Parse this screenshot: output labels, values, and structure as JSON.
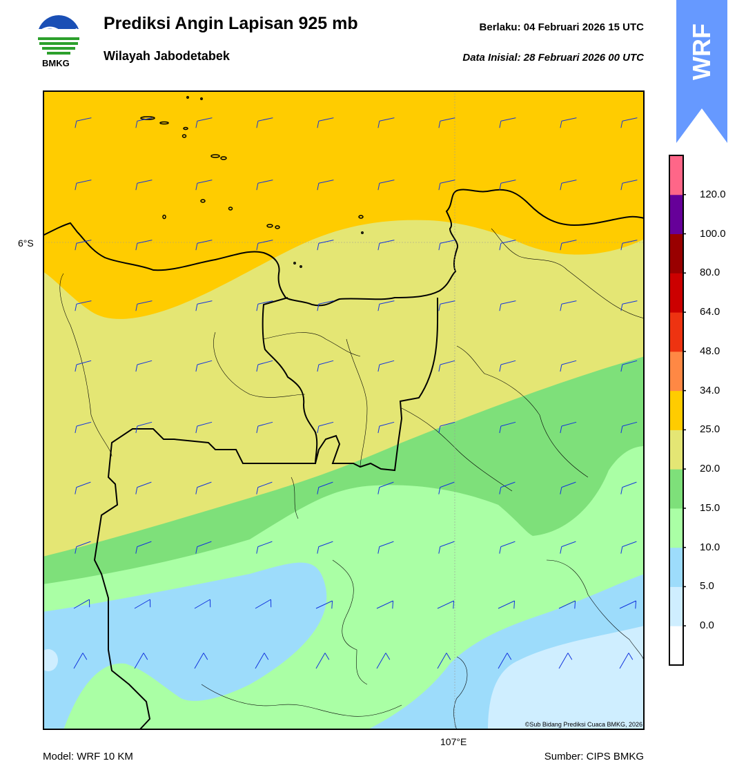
{
  "header": {
    "logo_text": "BMKG",
    "title": "Prediksi Angin Lapisan 925 mb",
    "subtitle": "Wilayah Jabodetabek",
    "valid": "Berlaku:  04 Februari 2026 15 UTC",
    "init": "Data Inisial:  28 Februari 2026 00 UTC"
  },
  "badge": {
    "text": "WRF",
    "color": "#6699ff"
  },
  "map": {
    "lat_label": "6°S",
    "lon_label": "107°E",
    "copyright": "©Sub Bidang Prediksi Cuaca BMKG, 2026",
    "wind_barb_color": "#1133dd",
    "fill_colors": {
      "25-34": "#ffcc00",
      "20-25": "#e4e674",
      "15-20": "#7ee07a",
      "10-15": "#aaffa5",
      "5-10": "#9ddcfb",
      "0-5": "#cfeeff"
    }
  },
  "colorbar": {
    "ticks": [
      "0.0",
      "5.0",
      "10.0",
      "15.0",
      "20.0",
      "25.0",
      "34.0",
      "48.0",
      "64.0",
      "80.0",
      "100.0",
      "120.0"
    ],
    "colors": [
      "#ffffff",
      "#cfeeff",
      "#9ddcfb",
      "#aaffa5",
      "#7ee07a",
      "#e4e674",
      "#ffcc00",
      "#ff8844",
      "#ee3311",
      "#cc0000",
      "#990000",
      "#660099",
      "#ff6688"
    ]
  },
  "footer": {
    "model": "Model: WRF 10 KM",
    "source": "Sumber: CIPS BMKG"
  }
}
